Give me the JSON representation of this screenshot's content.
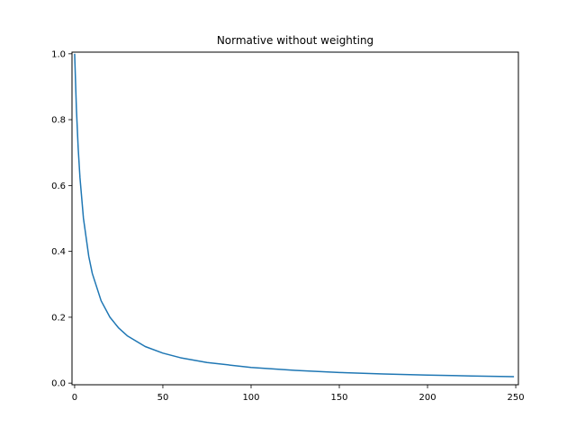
{
  "chart_data": {
    "type": "line",
    "title": "Normative without weighting",
    "xlabel": "",
    "ylabel": "",
    "xlim": [
      -1.5,
      251.5
    ],
    "ylim": [
      -0.005,
      1.005
    ],
    "x_ticks": [
      0,
      50,
      100,
      150,
      200,
      250
    ],
    "y_ticks": [
      0.0,
      0.2,
      0.4,
      0.6,
      0.8,
      1.0
    ],
    "x_tick_labels": [
      "0",
      "50",
      "100",
      "150",
      "200",
      "250"
    ],
    "y_tick_labels": [
      "0.0",
      "0.2",
      "0.4",
      "0.6",
      "0.8",
      "1.0"
    ],
    "grid": false,
    "legend": "none",
    "series": [
      {
        "color": "#1f77b4",
        "x": [
          0,
          1,
          2,
          3,
          5,
          8,
          10,
          15,
          20,
          25,
          30,
          40,
          50,
          60,
          75,
          100,
          125,
          150,
          175,
          200,
          225,
          249
        ],
        "values": [
          1.0,
          0.833,
          0.714,
          0.625,
          0.5,
          0.385,
          0.333,
          0.25,
          0.2,
          0.167,
          0.143,
          0.111,
          0.091,
          0.077,
          0.0625,
          0.0476,
          0.0385,
          0.0323,
          0.0278,
          0.0244,
          0.0217,
          0.0196
        ]
      }
    ]
  }
}
